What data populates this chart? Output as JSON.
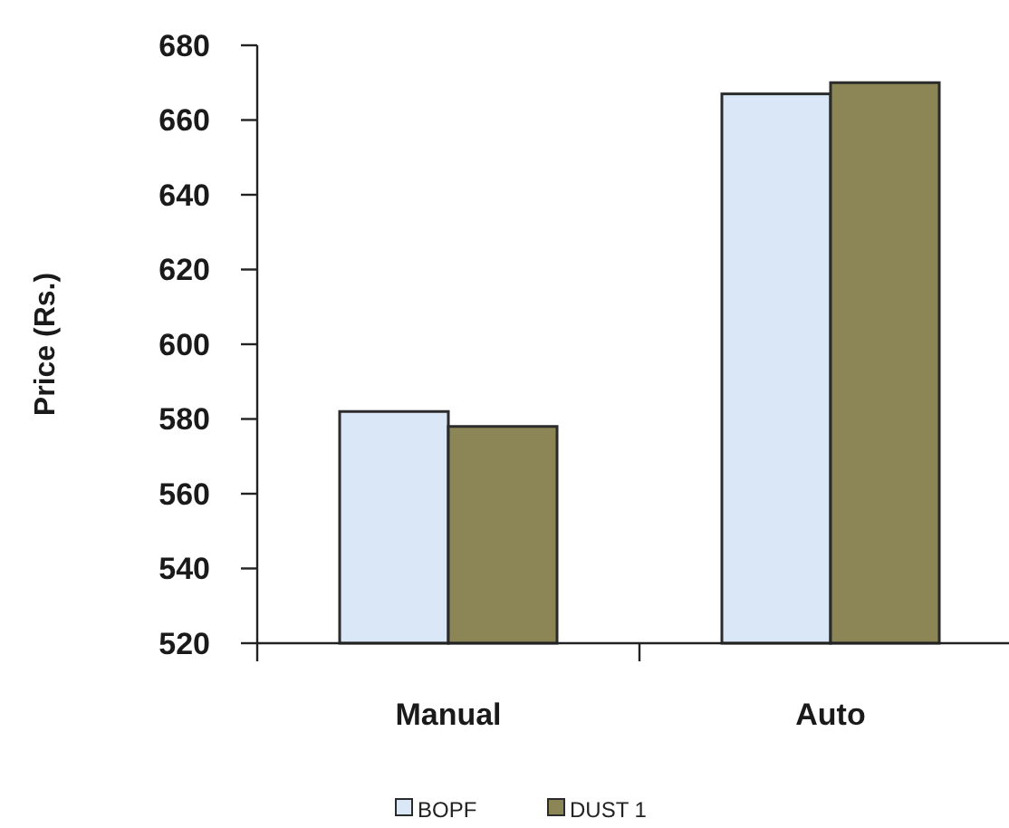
{
  "chart_data": {
    "type": "bar",
    "ylabel": "Price (Rs.)",
    "categories": [
      "Manual",
      "Auto"
    ],
    "series": [
      {
        "name": "BOPF",
        "color": "#dae7f6",
        "values": [
          582,
          667
        ]
      },
      {
        "name": "DUST 1",
        "color": "#8c8656",
        "values": [
          578,
          670
        ]
      }
    ],
    "ylim": [
      520,
      680
    ],
    "yticks": [
      520,
      540,
      560,
      580,
      600,
      620,
      640,
      660,
      680
    ],
    "grid": false,
    "legend": "bottom"
  }
}
